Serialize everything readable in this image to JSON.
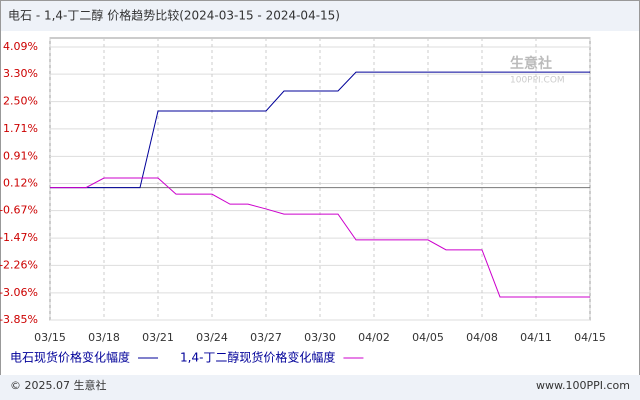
{
  "chart_data": {
    "type": "line",
    "title": "电石 - 1,4-丁二醇 价格趋势比较(2024-03-15 - 2024-04-15)",
    "categories": [
      "03/15",
      null,
      null,
      "03/18",
      null,
      null,
      "03/21",
      null,
      null,
      "03/24",
      null,
      null,
      "03/27",
      null,
      null,
      "03/30",
      null,
      null,
      "04/02",
      null,
      null,
      "04/05",
      null,
      null,
      "04/08",
      null,
      null,
      "04/11",
      null,
      null,
      "04/15"
    ],
    "series": [
      {
        "name": "电石现货价格变化幅度",
        "color": "#000099",
        "values": [
          0,
          0,
          0,
          0,
          0,
          0,
          2.23,
          2.23,
          2.23,
          2.23,
          2.23,
          2.23,
          2.23,
          2.81,
          2.81,
          2.81,
          2.81,
          3.36,
          3.36,
          3.36,
          3.36,
          3.36,
          3.36,
          3.36,
          3.36,
          3.36,
          3.36,
          3.36,
          3.36,
          3.36,
          3.36
        ]
      },
      {
        "name": "1,4-丁二醇现货价格变化幅度",
        "color": "#cc00cc",
        "values": [
          0,
          0,
          0,
          0.28,
          0.28,
          0.28,
          0.28,
          -0.19,
          -0.19,
          -0.19,
          -0.48,
          -0.48,
          -0.62,
          -0.77,
          -0.77,
          -0.77,
          -0.77,
          -1.52,
          -1.52,
          -1.52,
          -1.52,
          -1.52,
          -1.81,
          -1.81,
          -1.81,
          -3.18,
          -3.18,
          -3.18,
          -3.18,
          -3.18,
          -3.18
        ]
      }
    ],
    "ylim": [
      -3.85,
      4.09
    ],
    "yticks": [
      {
        "value": 4.09,
        "label": "4.09%"
      },
      {
        "value": 3.3,
        "label": "3.30%"
      },
      {
        "value": 2.5,
        "label": "2.50%"
      },
      {
        "value": 1.71,
        "label": "1.71%"
      },
      {
        "value": 0.91,
        "label": "0.91%"
      },
      {
        "value": 0.12,
        "label": "0.12%"
      },
      {
        "value": -0.67,
        "label": "-0.67%"
      },
      {
        "value": -1.47,
        "label": "-1.47%"
      },
      {
        "value": -2.26,
        "label": "-2.26%"
      },
      {
        "value": -3.06,
        "label": "-3.06%"
      },
      {
        "value": -3.85,
        "label": "-3.85%"
      }
    ],
    "grid": true,
    "watermark": [
      "生意社",
      "100PPI.COM"
    ],
    "footer": [
      "© 2025.07 生意社",
      "www.100PPI.com"
    ]
  }
}
